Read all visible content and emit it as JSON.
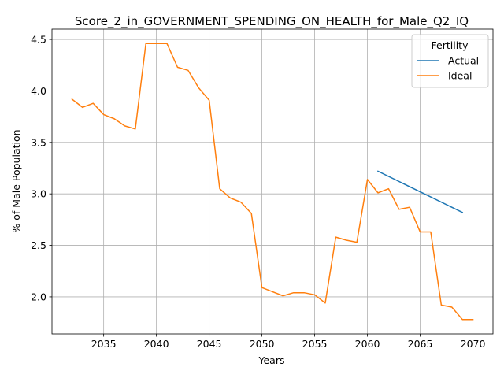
{
  "chart_data": {
    "type": "line",
    "title": "Score_2_in_GOVERNMENT_SPENDING_ON_HEALTH_for_Male_Q2_IQ",
    "xlabel": "Years",
    "ylabel": "% of Male Population",
    "xlim": [
      2030.1,
      2071.9
    ],
    "ylim": [
      1.64,
      4.6
    ],
    "x_ticks": [
      2035,
      2040,
      2045,
      2050,
      2055,
      2060,
      2065,
      2070
    ],
    "y_ticks": [
      2.0,
      2.5,
      3.0,
      3.5,
      4.0,
      4.5
    ],
    "grid": true,
    "legend": {
      "title": "Fertility",
      "placement": "top-right"
    },
    "series": [
      {
        "name": "Actual",
        "color": "#1f77b4",
        "x": [
          2061,
          2069
        ],
        "y": [
          3.22,
          2.82
        ]
      },
      {
        "name": "Ideal",
        "color": "#ff7f0e",
        "x": [
          2032,
          2033,
          2034,
          2035,
          2036,
          2037,
          2038,
          2039,
          2040,
          2041,
          2042,
          2043,
          2044,
          2045,
          2046,
          2047,
          2048,
          2049,
          2050,
          2051,
          2052,
          2053,
          2054,
          2055,
          2056,
          2057,
          2058,
          2059,
          2060,
          2061,
          2062,
          2063,
          2064,
          2065,
          2066,
          2067,
          2068,
          2069,
          2070
        ],
        "y": [
          3.92,
          3.84,
          3.88,
          3.77,
          3.73,
          3.66,
          3.63,
          4.46,
          4.46,
          4.46,
          4.23,
          4.2,
          4.03,
          3.91,
          3.05,
          2.96,
          2.92,
          2.81,
          2.09,
          2.05,
          2.01,
          2.04,
          2.04,
          2.02,
          1.94,
          2.58,
          2.55,
          2.53,
          3.14,
          3.01,
          3.05,
          2.85,
          2.87,
          2.63,
          2.63,
          1.92,
          1.9,
          1.78,
          1.78
        ]
      }
    ]
  }
}
